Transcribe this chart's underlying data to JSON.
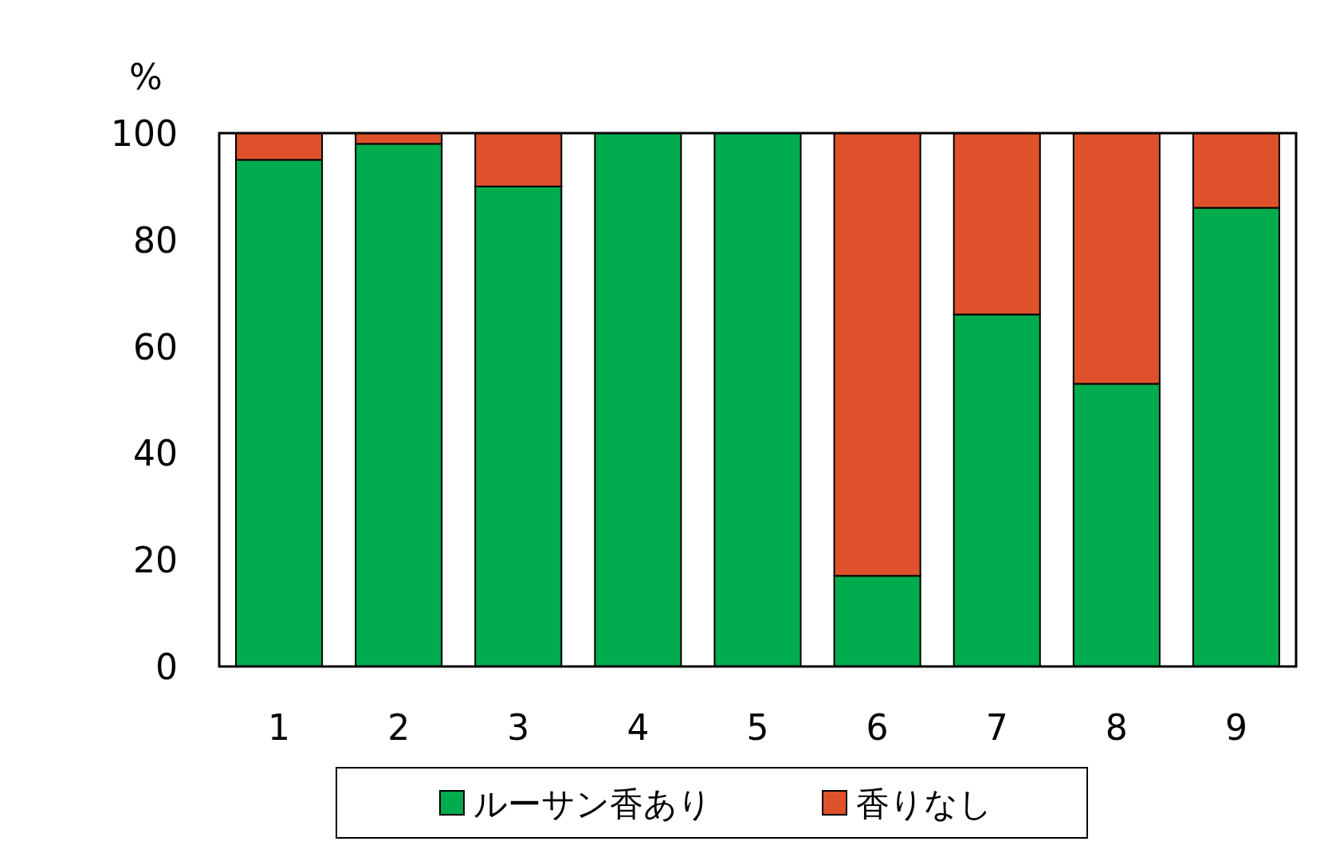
{
  "chart_data": {
    "type": "bar",
    "stacked": true,
    "ylabel": "%",
    "categories": [
      "1",
      "2",
      "3",
      "4",
      "5",
      "6",
      "7",
      "8",
      "9"
    ],
    "series": [
      {
        "name": "ルーサン香あり",
        "color": "#00ac4e",
        "values": [
          95,
          98,
          90,
          100,
          100,
          17,
          66,
          53,
          86
        ]
      },
      {
        "name": "香りなし",
        "color": "#de512b",
        "values": [
          5,
          2,
          10,
          0,
          0,
          83,
          34,
          47,
          14
        ]
      }
    ],
    "ylim": [
      0,
      100
    ],
    "yticks": [
      0,
      20,
      40,
      60,
      80,
      100
    ],
    "grid": false,
    "legend": "bottom"
  }
}
